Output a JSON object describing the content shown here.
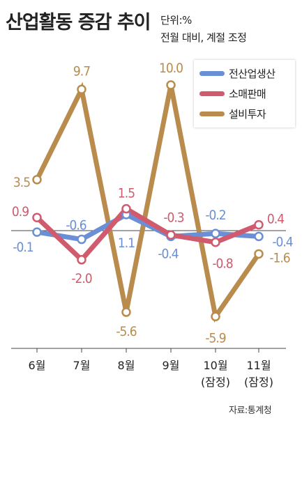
{
  "title": "산업활동 증감 추이",
  "unit": "단위:%",
  "note": "전월 대비, 계절 조정",
  "source": "자료:통계청",
  "colors": {
    "industry": "#6b8fd6",
    "retail": "#d05a6e",
    "investment": "#b98c4e"
  },
  "chart_data": {
    "type": "line",
    "title": "산업활동 증감 추이",
    "categories": [
      [
        "6월"
      ],
      [
        "7월"
      ],
      [
        "8월"
      ],
      [
        "9월"
      ],
      [
        "10월",
        "(잠정)"
      ],
      [
        "11월",
        "(잠정)"
      ]
    ],
    "series": [
      {
        "key": "industry",
        "name": "전산업생산",
        "values": [
          -0.1,
          -0.6,
          1.1,
          -0.4,
          -0.2,
          -0.4
        ],
        "labels": [
          "-0.1",
          "-0.6",
          "1.1",
          "-0.4",
          "-0.2",
          "-0.4"
        ]
      },
      {
        "key": "retail",
        "name": "소매판매",
        "values": [
          0.9,
          -2.0,
          1.5,
          -0.3,
          -0.8,
          0.4
        ],
        "labels": [
          "0.9",
          "-2.0",
          "1.5",
          "-0.3",
          "-0.8",
          "0.4"
        ]
      },
      {
        "key": "investment",
        "name": "설비투자",
        "values": [
          3.5,
          9.7,
          -5.6,
          10.0,
          -5.9,
          -1.6
        ],
        "labels": [
          "3.5",
          "9.7",
          "-5.6",
          "10.0",
          "-5.9",
          "-1.6"
        ]
      }
    ],
    "legend": "top-right",
    "grid": false
  }
}
